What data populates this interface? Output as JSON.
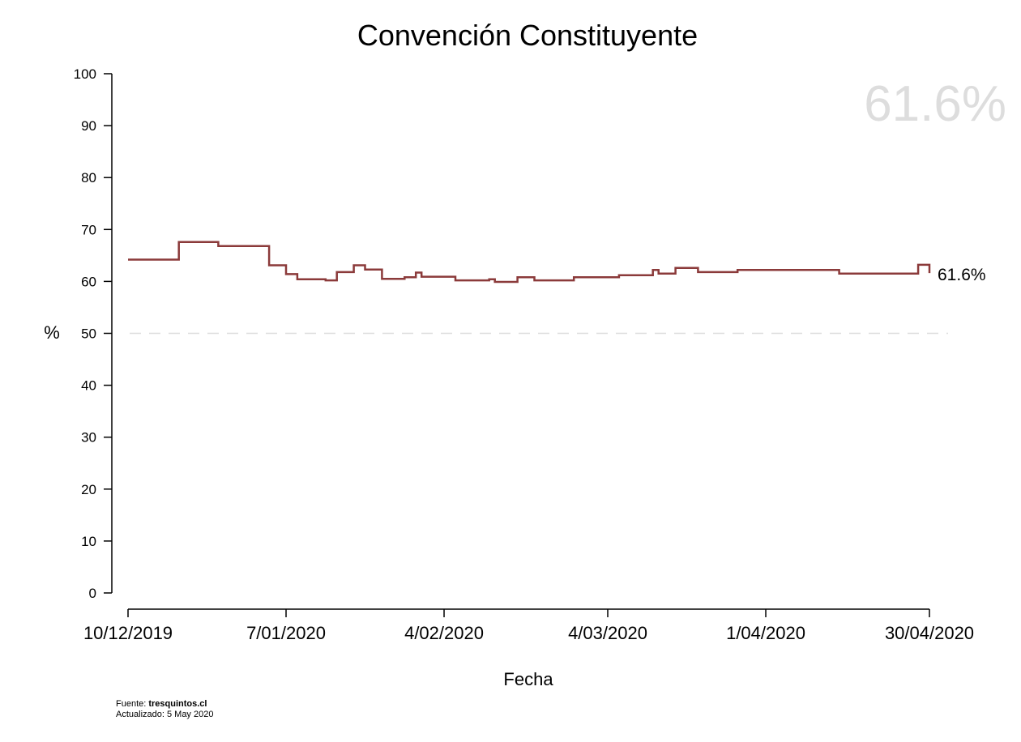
{
  "chart_data": {
    "type": "line",
    "step": true,
    "title": "Convención Constituyente",
    "xlabel": "Fecha",
    "ylabel": "%",
    "ylim": [
      0,
      100
    ],
    "xlim": [
      "2019-12-10",
      "2020-04-30"
    ],
    "yticks": [
      "0",
      "10",
      "20",
      "30",
      "40",
      "50",
      "60",
      "70",
      "80",
      "90",
      "100"
    ],
    "xticks": [
      {
        "date": "2019-12-10",
        "label": "10/12/2019"
      },
      {
        "date": "2020-01-07",
        "label": "7/01/2020"
      },
      {
        "date": "2020-02-04",
        "label": "4/02/2020"
      },
      {
        "date": "2020-03-04",
        "label": "4/03/2020"
      },
      {
        "date": "2020-04-01",
        "label": "1/04/2020"
      },
      {
        "date": "2020-04-30",
        "label": "30/04/2020"
      }
    ],
    "reference_line": {
      "y": 50,
      "style": "dashed",
      "color": "#dddddd"
    },
    "series": [
      {
        "color": "#8b3a3a",
        "points": [
          {
            "x": "2019-12-10",
            "y": 64.2
          },
          {
            "x": "2019-12-19",
            "y": 67.6
          },
          {
            "x": "2019-12-26",
            "y": 66.8
          },
          {
            "x": "2020-01-04",
            "y": 63.1
          },
          {
            "x": "2020-01-07",
            "y": 61.4
          },
          {
            "x": "2020-01-09",
            "y": 60.4
          },
          {
            "x": "2020-01-14",
            "y": 60.2
          },
          {
            "x": "2020-01-16",
            "y": 61.8
          },
          {
            "x": "2020-01-19",
            "y": 63.1
          },
          {
            "x": "2020-01-21",
            "y": 62.3
          },
          {
            "x": "2020-01-24",
            "y": 60.5
          },
          {
            "x": "2020-01-28",
            "y": 60.8
          },
          {
            "x": "2020-01-30",
            "y": 61.7
          },
          {
            "x": "2020-01-31",
            "y": 60.9
          },
          {
            "x": "2020-02-06",
            "y": 60.2
          },
          {
            "x": "2020-02-12",
            "y": 60.4
          },
          {
            "x": "2020-02-13",
            "y": 59.9
          },
          {
            "x": "2020-02-17",
            "y": 60.8
          },
          {
            "x": "2020-02-20",
            "y": 60.2
          },
          {
            "x": "2020-02-27",
            "y": 60.8
          },
          {
            "x": "2020-03-06",
            "y": 61.2
          },
          {
            "x": "2020-03-12",
            "y": 62.2
          },
          {
            "x": "2020-03-13",
            "y": 61.5
          },
          {
            "x": "2020-03-16",
            "y": 62.6
          },
          {
            "x": "2020-03-20",
            "y": 61.8
          },
          {
            "x": "2020-03-27",
            "y": 62.2
          },
          {
            "x": "2020-04-14",
            "y": 61.5
          },
          {
            "x": "2020-04-28",
            "y": 63.2
          },
          {
            "x": "2020-04-30",
            "y": 61.6
          }
        ]
      }
    ],
    "end_label": "61.6%",
    "watermark": "61.6%",
    "watermark_color": "#dddddd",
    "grid": false,
    "legend": "none"
  },
  "footer": {
    "source_prefix": "Fuente: ",
    "source_name": "tresquintos.cl",
    "updated": "Actualizado: 5 May 2020"
  }
}
